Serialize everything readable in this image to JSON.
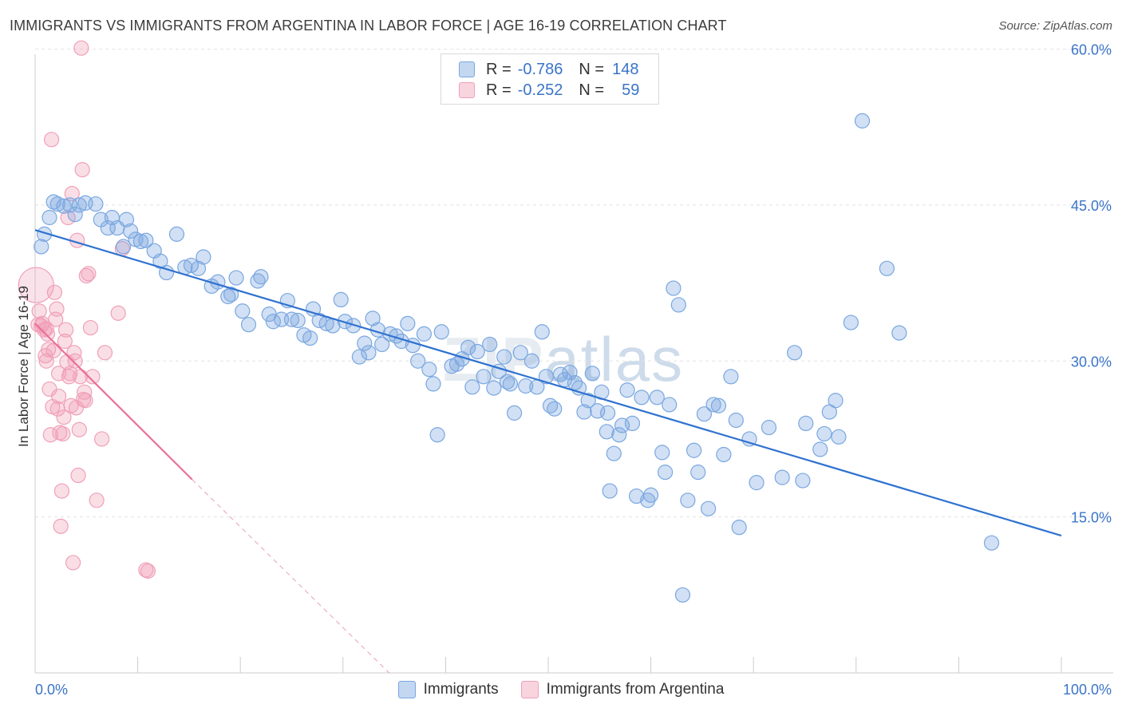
{
  "title": "IMMIGRANTS VS IMMIGRANTS FROM ARGENTINA IN LABOR FORCE | AGE 16-19 CORRELATION CHART",
  "source": "Source: ZipAtlas.com",
  "watermark": {
    "zip": "ZIP",
    "atlas": "atlas"
  },
  "legend_top": {
    "rows": [
      {
        "r_label": "R =",
        "r_value": "-0.786",
        "n_label": "N =",
        "n_value": "148",
        "color": "#7aa7e0"
      },
      {
        "r_label": "R =",
        "r_value": "-0.252",
        "n_label": "N =",
        "n_value": "59",
        "color": "#f0a0b8"
      }
    ]
  },
  "legend_bottom": {
    "items": [
      {
        "label": "Immigrants",
        "color": "#7aa7e0"
      },
      {
        "label": "Immigrants from Argentina",
        "color": "#f0a0b8"
      }
    ]
  },
  "chart_data": {
    "type": "scatter",
    "title": "IMMIGRANTS VS IMMIGRANTS FROM ARGENTINA IN LABOR FORCE | AGE 16-19 CORRELATION CHART",
    "xlabel": "",
    "ylabel": "In Labor Force | Age 16-19",
    "xlim": [
      0,
      100
    ],
    "ylim": [
      0,
      60.5
    ],
    "x_tick_labels": [
      {
        "value": 0,
        "label": "0.0%"
      },
      {
        "value": 100,
        "label": "100.0%"
      }
    ],
    "y_tick_labels": [
      {
        "value": 15,
        "label": "15.0%"
      },
      {
        "value": 30,
        "label": "30.0%"
      },
      {
        "value": 45,
        "label": "45.0%"
      },
      {
        "value": 60,
        "label": "60.0%"
      }
    ],
    "series": [
      {
        "name": "Immigrants",
        "color": "#7aa7e0",
        "line_color": "#2f72d0",
        "trend": {
          "x0": 0,
          "y0": 42.6,
          "x1": 100,
          "y1": 13.2
        },
        "points": [
          [
            0.6,
            41.0
          ],
          [
            0.9,
            42.2
          ],
          [
            1.4,
            43.8
          ],
          [
            1.8,
            45.3
          ],
          [
            2.2,
            45.1
          ],
          [
            2.8,
            44.9
          ],
          [
            3.4,
            45.0
          ],
          [
            3.9,
            44.1
          ],
          [
            4.3,
            45.0
          ],
          [
            4.9,
            45.2
          ],
          [
            5.9,
            45.1
          ],
          [
            6.4,
            43.6
          ],
          [
            7.1,
            42.8
          ],
          [
            7.5,
            43.8
          ],
          [
            8.0,
            42.8
          ],
          [
            8.6,
            41.0
          ],
          [
            8.9,
            43.6
          ],
          [
            9.3,
            42.5
          ],
          [
            9.8,
            41.7
          ],
          [
            10.3,
            41.5
          ],
          [
            10.8,
            41.6
          ],
          [
            11.6,
            40.6
          ],
          [
            12.2,
            39.6
          ],
          [
            12.8,
            38.5
          ],
          [
            13.8,
            42.2
          ],
          [
            14.6,
            39.0
          ],
          [
            15.2,
            39.2
          ],
          [
            15.9,
            38.9
          ],
          [
            16.4,
            40.0
          ],
          [
            17.2,
            37.2
          ],
          [
            17.8,
            37.6
          ],
          [
            18.8,
            36.2
          ],
          [
            19.1,
            36.4
          ],
          [
            19.6,
            38.0
          ],
          [
            20.2,
            34.8
          ],
          [
            20.8,
            33.5
          ],
          [
            21.7,
            37.7
          ],
          [
            22.0,
            38.1
          ],
          [
            22.8,
            34.5
          ],
          [
            23.2,
            33.8
          ],
          [
            24.0,
            34.0
          ],
          [
            24.6,
            35.8
          ],
          [
            25.0,
            34.0
          ],
          [
            25.6,
            33.9
          ],
          [
            26.2,
            32.5
          ],
          [
            26.8,
            32.2
          ],
          [
            27.1,
            35.0
          ],
          [
            27.7,
            33.9
          ],
          [
            28.4,
            33.6
          ],
          [
            29.0,
            33.4
          ],
          [
            29.8,
            35.9
          ],
          [
            30.2,
            33.8
          ],
          [
            31.0,
            33.4
          ],
          [
            31.6,
            30.4
          ],
          [
            32.1,
            31.7
          ],
          [
            32.5,
            30.8
          ],
          [
            32.9,
            34.1
          ],
          [
            33.4,
            33.0
          ],
          [
            33.8,
            31.6
          ],
          [
            34.6,
            32.6
          ],
          [
            35.2,
            32.4
          ],
          [
            35.7,
            31.9
          ],
          [
            36.3,
            33.6
          ],
          [
            36.8,
            31.5
          ],
          [
            37.3,
            30.0
          ],
          [
            37.9,
            32.6
          ],
          [
            38.4,
            29.2
          ],
          [
            38.8,
            27.8
          ],
          [
            39.2,
            22.9
          ],
          [
            39.6,
            32.8
          ],
          [
            40.6,
            29.5
          ],
          [
            41.1,
            29.7
          ],
          [
            41.6,
            30.2
          ],
          [
            42.2,
            31.3
          ],
          [
            42.6,
            27.5
          ],
          [
            43.1,
            30.9
          ],
          [
            43.7,
            28.5
          ],
          [
            44.3,
            31.6
          ],
          [
            44.7,
            27.4
          ],
          [
            45.2,
            29.0
          ],
          [
            45.7,
            30.4
          ],
          [
            46.3,
            27.8
          ],
          [
            46.7,
            25.0
          ],
          [
            47.3,
            30.8
          ],
          [
            47.8,
            27.6
          ],
          [
            48.4,
            30.0
          ],
          [
            48.9,
            27.5
          ],
          [
            49.4,
            32.8
          ],
          [
            49.8,
            28.5
          ],
          [
            50.2,
            25.7
          ],
          [
            50.6,
            25.4
          ],
          [
            51.2,
            28.7
          ],
          [
            51.6,
            28.2
          ],
          [
            52.1,
            28.9
          ],
          [
            52.6,
            27.9
          ],
          [
            53.0,
            27.4
          ],
          [
            53.5,
            25.1
          ],
          [
            53.9,
            26.2
          ],
          [
            54.3,
            28.8
          ],
          [
            54.8,
            25.2
          ],
          [
            55.2,
            27.0
          ],
          [
            55.7,
            23.2
          ],
          [
            56.0,
            17.5
          ],
          [
            56.4,
            21.1
          ],
          [
            56.9,
            22.9
          ],
          [
            57.2,
            23.8
          ],
          [
            57.7,
            27.2
          ],
          [
            58.2,
            24.0
          ],
          [
            58.6,
            17.0
          ],
          [
            59.1,
            26.5
          ],
          [
            59.7,
            16.6
          ],
          [
            60.0,
            17.1
          ],
          [
            60.6,
            26.5
          ],
          [
            61.1,
            21.2
          ],
          [
            61.4,
            19.3
          ],
          [
            61.8,
            25.8
          ],
          [
            62.2,
            37.0
          ],
          [
            62.7,
            35.4
          ],
          [
            63.1,
            7.5
          ],
          [
            63.6,
            16.6
          ],
          [
            64.2,
            21.4
          ],
          [
            64.6,
            19.3
          ],
          [
            65.2,
            24.9
          ],
          [
            65.6,
            15.8
          ],
          [
            66.1,
            25.8
          ],
          [
            66.6,
            25.7
          ],
          [
            67.1,
            21.0
          ],
          [
            67.8,
            28.5
          ],
          [
            68.3,
            24.3
          ],
          [
            68.6,
            14.0
          ],
          [
            69.6,
            22.5
          ],
          [
            70.3,
            18.3
          ],
          [
            71.5,
            23.6
          ],
          [
            72.8,
            18.8
          ],
          [
            74.0,
            30.8
          ],
          [
            74.8,
            18.5
          ],
          [
            75.1,
            24.0
          ],
          [
            76.5,
            21.5
          ],
          [
            76.9,
            23.0
          ],
          [
            77.4,
            25.1
          ],
          [
            78.0,
            26.2
          ],
          [
            78.3,
            22.7
          ],
          [
            79.5,
            33.7
          ],
          [
            80.6,
            53.1
          ],
          [
            83.0,
            38.9
          ],
          [
            84.2,
            32.7
          ],
          [
            93.2,
            12.5
          ],
          [
            55.8,
            25.0
          ],
          [
            46.0,
            28.0
          ]
        ]
      },
      {
        "name": "Immigrants from Argentina",
        "color": "#f0a0b8",
        "line_color": "#e8709a",
        "trend": {
          "x0": 0,
          "y0": 33.6,
          "x1": 15.3,
          "y1": 18.6
        },
        "trend_dashed": {
          "x0": 15.3,
          "y0": 18.6,
          "x1": 34.5,
          "y1": 0
        },
        "points": [
          [
            0.1,
            37.3
          ],
          [
            0.3,
            33.5
          ],
          [
            0.6,
            33.4
          ],
          [
            0.7,
            33.6
          ],
          [
            0.9,
            33.0
          ],
          [
            1.0,
            30.5
          ],
          [
            1.1,
            30.0
          ],
          [
            1.2,
            32.6
          ],
          [
            1.3,
            31.1
          ],
          [
            1.4,
            27.3
          ],
          [
            1.5,
            22.9
          ],
          [
            1.6,
            51.3
          ],
          [
            1.7,
            25.6
          ],
          [
            1.8,
            31.0
          ],
          [
            1.9,
            36.6
          ],
          [
            2.0,
            34.0
          ],
          [
            2.1,
            35.0
          ],
          [
            2.2,
            25.4
          ],
          [
            2.3,
            26.6
          ],
          [
            2.4,
            23.1
          ],
          [
            2.5,
            14.1
          ],
          [
            2.6,
            17.5
          ],
          [
            2.7,
            23.0
          ],
          [
            2.8,
            24.6
          ],
          [
            2.9,
            31.9
          ],
          [
            3.0,
            33.0
          ],
          [
            3.1,
            29.9
          ],
          [
            3.2,
            43.8
          ],
          [
            3.3,
            28.5
          ],
          [
            3.4,
            28.8
          ],
          [
            3.5,
            25.7
          ],
          [
            3.6,
            46.1
          ],
          [
            3.7,
            10.6
          ],
          [
            3.8,
            30.8
          ],
          [
            3.9,
            30.0
          ],
          [
            4.0,
            25.5
          ],
          [
            4.1,
            41.6
          ],
          [
            4.2,
            19.0
          ],
          [
            4.3,
            23.4
          ],
          [
            4.4,
            28.5
          ],
          [
            4.5,
            60.1
          ],
          [
            4.6,
            48.4
          ],
          [
            4.7,
            26.3
          ],
          [
            4.8,
            27.0
          ],
          [
            4.9,
            26.2
          ],
          [
            5.0,
            38.2
          ],
          [
            5.2,
            38.4
          ],
          [
            5.4,
            33.2
          ],
          [
            5.6,
            28.5
          ],
          [
            6.0,
            16.6
          ],
          [
            6.5,
            22.5
          ],
          [
            6.8,
            30.8
          ],
          [
            8.1,
            34.6
          ],
          [
            8.5,
            40.8
          ],
          [
            10.8,
            9.9
          ],
          [
            11.0,
            9.8
          ],
          [
            2.3,
            28.8
          ],
          [
            1.1,
            33.1
          ],
          [
            0.4,
            34.8
          ]
        ]
      }
    ],
    "grid": true
  }
}
